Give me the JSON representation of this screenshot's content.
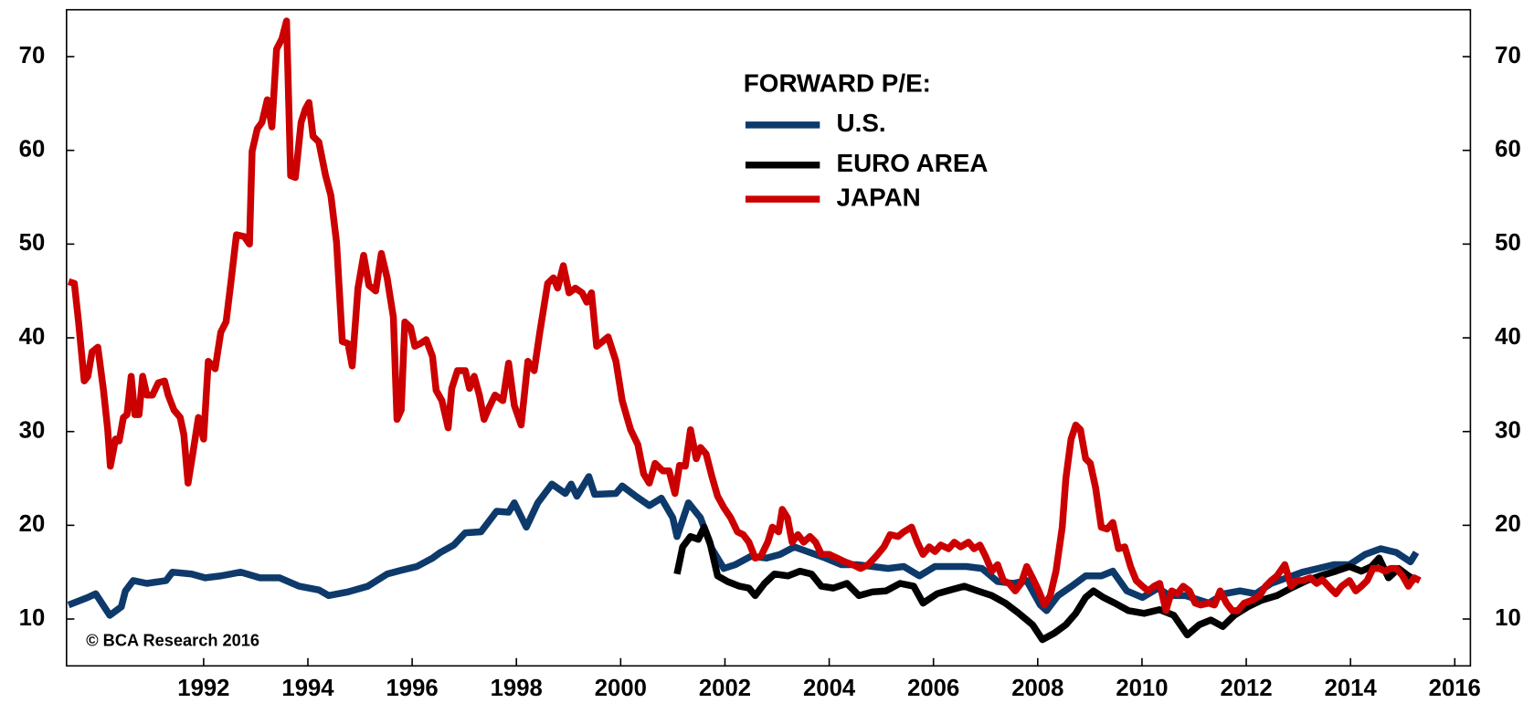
{
  "chart_data": {
    "type": "line",
    "legend_title": "FORWARD P/E:",
    "annotation": "© BCA Research 2016",
    "xlim": [
      1989.37,
      2016.3
    ],
    "xticks": [
      1992,
      1994,
      1996,
      1998,
      2000,
      2002,
      2004,
      2006,
      2008,
      2010,
      2012,
      2014,
      2016
    ],
    "ylim": [
      5,
      75
    ],
    "yticks": [
      10,
      20,
      30,
      40,
      50,
      60,
      70
    ],
    "y_labels_both_sides": true,
    "series": [
      {
        "name": "U.S.",
        "color": "#0d3a6b",
        "x": [
          1989.41,
          1989.78,
          1989.93,
          1990.2,
          1990.42,
          1990.5,
          1990.65,
          1990.91,
          1991.28,
          1991.4,
          1991.77,
          1992.03,
          1992.33,
          1992.71,
          1993.08,
          1993.46,
          1993.83,
          1994.21,
          1994.4,
          1994.77,
          1995.15,
          1995.52,
          1995.79,
          1996.09,
          1996.39,
          1996.54,
          1996.8,
          1997.02,
          1997.32,
          1997.62,
          1997.85,
          1997.96,
          1998.19,
          1998.41,
          1998.68,
          1998.94,
          1999.05,
          1999.16,
          1999.39,
          1999.5,
          1999.91,
          2000.03,
          2000.29,
          2000.55,
          2000.78,
          2001.0,
          2001.08,
          2001.3,
          2001.53,
          2001.75,
          2001.98,
          2002.2,
          2002.5,
          2002.8,
          2003.06,
          2003.33,
          2003.63,
          2003.93,
          2004.23,
          2004.53,
          2004.83,
          2005.13,
          2005.43,
          2005.73,
          2006.03,
          2006.33,
          2006.63,
          2006.93,
          2007.23,
          2007.53,
          2007.79,
          2008.05,
          2008.17,
          2008.39,
          2008.65,
          2008.92,
          2009.22,
          2009.44,
          2009.71,
          2010.01,
          2010.31,
          2010.53,
          2010.83,
          2011.28,
          2011.58,
          2011.88,
          2012.18,
          2012.48,
          2012.78,
          2013.08,
          2013.38,
          2013.68,
          2013.98,
          2014.28,
          2014.58,
          2014.88,
          2015.15,
          2015.26
        ],
        "values": [
          11.5,
          12.3,
          12.7,
          10.4,
          11.3,
          13.0,
          14.1,
          13.8,
          14.1,
          15.0,
          14.8,
          14.4,
          14.6,
          15.0,
          14.4,
          14.4,
          13.5,
          13.1,
          12.5,
          12.9,
          13.5,
          14.8,
          15.2,
          15.6,
          16.5,
          17.1,
          17.9,
          19.2,
          19.3,
          21.5,
          21.4,
          22.4,
          19.8,
          22.4,
          24.4,
          23.4,
          24.4,
          23.1,
          25.2,
          23.3,
          23.4,
          24.2,
          23.1,
          22.1,
          22.9,
          20.8,
          18.8,
          22.4,
          20.8,
          17.5,
          15.4,
          15.8,
          16.7,
          16.5,
          16.9,
          17.7,
          17.1,
          16.5,
          15.8,
          15.8,
          15.6,
          15.4,
          15.6,
          14.6,
          15.6,
          15.6,
          15.6,
          15.4,
          14.0,
          13.8,
          14.1,
          11.5,
          10.9,
          12.5,
          13.5,
          14.6,
          14.6,
          15.1,
          13.0,
          12.3,
          13.3,
          12.5,
          12.5,
          11.7,
          12.7,
          13.0,
          12.7,
          13.8,
          14.4,
          15.0,
          15.4,
          15.8,
          15.8,
          16.9,
          17.5,
          17.1,
          16.1,
          17.1
        ]
      },
      {
        "name": "EURO AREA",
        "color": "#000000",
        "x": [
          2001.08,
          2001.19,
          2001.34,
          2001.49,
          2001.6,
          2001.71,
          2001.86,
          2002.05,
          2002.28,
          2002.46,
          2002.58,
          2002.76,
          2002.95,
          2003.21,
          2003.44,
          2003.66,
          2003.85,
          2004.08,
          2004.34,
          2004.57,
          2004.83,
          2005.09,
          2005.36,
          2005.62,
          2005.8,
          2006.07,
          2006.33,
          2006.59,
          2006.85,
          2007.12,
          2007.38,
          2007.64,
          2007.9,
          2008.09,
          2008.32,
          2008.54,
          2008.73,
          2008.92,
          2009.07,
          2009.26,
          2009.48,
          2009.74,
          2010.04,
          2010.34,
          2010.61,
          2010.87,
          2011.1,
          2011.32,
          2011.55,
          2011.77,
          2012.03,
          2012.29,
          2012.59,
          2012.86,
          2013.16,
          2013.42,
          2013.72,
          2013.98,
          2014.21,
          2014.4,
          2014.55,
          2014.73,
          2014.92,
          2015.11,
          2015.26
        ],
        "values": [
          14.8,
          17.7,
          18.8,
          18.5,
          19.8,
          18.2,
          14.6,
          14.0,
          13.5,
          13.3,
          12.5,
          13.8,
          14.8,
          14.6,
          15.1,
          14.8,
          13.5,
          13.3,
          13.8,
          12.5,
          12.9,
          13.0,
          13.8,
          13.5,
          11.7,
          12.7,
          13.1,
          13.5,
          13.0,
          12.5,
          11.7,
          10.6,
          9.4,
          7.8,
          8.5,
          9.4,
          10.6,
          12.3,
          13.0,
          12.3,
          11.7,
          10.9,
          10.6,
          11.0,
          10.4,
          8.3,
          9.4,
          9.9,
          9.2,
          10.4,
          11.3,
          12.0,
          12.5,
          13.3,
          14.1,
          14.6,
          15.1,
          15.6,
          15.1,
          15.6,
          16.5,
          14.4,
          15.4,
          14.6,
          14.1
        ]
      },
      {
        "name": "JAPAN",
        "color": "#cc0000",
        "x": [
          1989.41,
          1989.52,
          1989.6,
          1989.71,
          1989.78,
          1989.86,
          1989.97,
          1990.08,
          1990.16,
          1990.21,
          1990.31,
          1990.38,
          1990.46,
          1990.53,
          1990.61,
          1990.68,
          1990.76,
          1990.83,
          1990.91,
          1991.02,
          1991.13,
          1991.25,
          1991.32,
          1991.43,
          1991.55,
          1991.62,
          1991.7,
          1991.79,
          1991.9,
          1992.0,
          1992.09,
          1992.22,
          1992.33,
          1992.43,
          1992.52,
          1992.63,
          1992.78,
          1992.88,
          1992.93,
          1993.03,
          1993.12,
          1993.22,
          1993.31,
          1993.4,
          1993.5,
          1993.59,
          1993.67,
          1993.76,
          1993.87,
          1993.95,
          1994.02,
          1994.1,
          1994.21,
          1994.34,
          1994.44,
          1994.55,
          1994.66,
          1994.77,
          1994.85,
          1994.96,
          1995.07,
          1995.17,
          1995.3,
          1995.41,
          1995.52,
          1995.64,
          1995.71,
          1995.79,
          1995.86,
          1995.97,
          1996.05,
          1996.16,
          1996.27,
          1996.39,
          1996.46,
          1996.57,
          1996.69,
          1996.76,
          1996.87,
          1997.02,
          1997.1,
          1997.19,
          1997.29,
          1997.38,
          1997.47,
          1997.59,
          1997.74,
          1997.85,
          1997.96,
          1998.09,
          1998.22,
          1998.34,
          1998.45,
          1998.6,
          1998.71,
          1998.79,
          1998.9,
          1999.01,
          1999.13,
          1999.26,
          1999.35,
          1999.44,
          1999.54,
          1999.65,
          1999.76,
          1999.91,
          2000.03,
          2000.19,
          2000.33,
          2000.44,
          2000.55,
          2000.66,
          2000.81,
          2000.93,
          2001.04,
          2001.13,
          2001.24,
          2001.34,
          2001.45,
          2001.53,
          2001.64,
          2001.75,
          2001.86,
          2001.98,
          2002.11,
          2002.24,
          2002.35,
          2002.46,
          2002.58,
          2002.69,
          2002.82,
          2002.91,
          2003.03,
          2003.1,
          2003.2,
          2003.29,
          2003.4,
          2003.51,
          2003.63,
          2003.74,
          2003.85,
          2004.0,
          2004.15,
          2004.3,
          2004.45,
          2004.6,
          2004.75,
          2004.9,
          2005.05,
          2005.17,
          2005.32,
          2005.43,
          2005.58,
          2005.69,
          2005.8,
          2005.92,
          2006.03,
          2006.14,
          2006.29,
          2006.4,
          2006.52,
          2006.67,
          2006.78,
          2006.89,
          2007.0,
          2007.12,
          2007.23,
          2007.34,
          2007.45,
          2007.57,
          2007.68,
          2007.79,
          2007.9,
          2008.02,
          2008.13,
          2008.24,
          2008.35,
          2008.47,
          2008.54,
          2008.64,
          2008.73,
          2008.82,
          2008.92,
          2009.01,
          2009.11,
          2009.22,
          2009.33,
          2009.44,
          2009.55,
          2009.67,
          2009.78,
          2009.89,
          2010.01,
          2010.12,
          2010.23,
          2010.34,
          2010.46,
          2010.57,
          2010.68,
          2010.79,
          2010.91,
          2011.02,
          2011.13,
          2011.28,
          2011.39,
          2011.5,
          2011.62,
          2011.73,
          2011.84,
          2011.96,
          2012.11,
          2012.26,
          2012.37,
          2012.48,
          2012.59,
          2012.74,
          2012.86,
          2012.97,
          2013.08,
          2013.23,
          2013.35,
          2013.46,
          2013.61,
          2013.72,
          2013.83,
          2013.98,
          2014.1,
          2014.21,
          2014.32,
          2014.43,
          2014.55,
          2014.66,
          2014.77,
          2014.88,
          2015.0,
          2015.11,
          2015.22,
          2015.33
        ],
        "values": [
          46.0,
          45.8,
          41.7,
          35.4,
          35.9,
          38.5,
          39.0,
          34.4,
          30.2,
          26.3,
          29.2,
          29.0,
          31.5,
          31.8,
          35.9,
          31.8,
          31.8,
          35.9,
          33.9,
          33.9,
          35.2,
          35.4,
          33.9,
          32.3,
          31.5,
          29.7,
          24.5,
          27.6,
          31.5,
          29.2,
          37.5,
          36.7,
          40.6,
          41.7,
          45.8,
          51.0,
          50.8,
          50.0,
          59.9,
          62.3,
          63.0,
          65.4,
          62.5,
          70.8,
          71.9,
          73.8,
          57.3,
          57.1,
          63.0,
          64.4,
          65.1,
          61.5,
          60.9,
          57.3,
          55.2,
          50.2,
          39.6,
          39.4,
          37.0,
          45.3,
          48.8,
          45.6,
          45.0,
          49.0,
          46.4,
          42.2,
          31.3,
          32.3,
          41.7,
          41.1,
          39.1,
          39.4,
          39.8,
          38.0,
          34.4,
          33.3,
          30.4,
          34.6,
          36.5,
          36.5,
          34.6,
          35.9,
          33.9,
          31.3,
          32.5,
          33.9,
          33.3,
          37.3,
          32.8,
          30.7,
          37.5,
          36.5,
          40.6,
          45.8,
          46.4,
          45.3,
          47.7,
          44.8,
          45.3,
          44.8,
          43.8,
          44.8,
          39.1,
          39.6,
          40.1,
          37.5,
          33.3,
          30.2,
          28.6,
          25.5,
          24.5,
          26.6,
          25.8,
          25.8,
          23.4,
          26.4,
          26.3,
          30.2,
          27.1,
          28.3,
          27.6,
          25.2,
          23.1,
          21.9,
          20.8,
          19.3,
          19.0,
          18.2,
          16.5,
          16.7,
          18.2,
          19.8,
          19.3,
          21.7,
          20.8,
          18.2,
          19.0,
          18.2,
          18.8,
          18.2,
          16.9,
          16.9,
          16.5,
          16.1,
          15.8,
          15.4,
          15.8,
          16.7,
          17.7,
          19.0,
          18.8,
          19.3,
          19.8,
          18.2,
          16.9,
          17.7,
          17.2,
          17.9,
          17.5,
          18.2,
          17.7,
          18.2,
          17.5,
          17.9,
          16.7,
          15.1,
          15.8,
          14.1,
          13.8,
          13.0,
          13.8,
          15.6,
          14.4,
          13.0,
          11.5,
          12.5,
          15.1,
          19.8,
          25.0,
          29.2,
          30.7,
          30.2,
          27.1,
          26.6,
          24.0,
          19.8,
          19.6,
          20.3,
          17.5,
          17.7,
          15.6,
          14.1,
          13.5,
          13.0,
          13.5,
          13.8,
          10.9,
          13.0,
          12.7,
          13.5,
          13.0,
          11.7,
          11.5,
          11.7,
          11.5,
          13.0,
          11.7,
          10.9,
          10.9,
          11.7,
          12.0,
          12.5,
          13.5,
          14.1,
          14.6,
          15.8,
          13.5,
          14.1,
          14.1,
          14.4,
          13.8,
          14.2,
          13.3,
          12.7,
          13.5,
          14.1,
          13.0,
          13.5,
          14.1,
          15.4,
          15.4,
          15.1,
          15.4,
          15.4,
          14.6,
          13.5,
          14.4,
          14.1
        ]
      }
    ]
  }
}
